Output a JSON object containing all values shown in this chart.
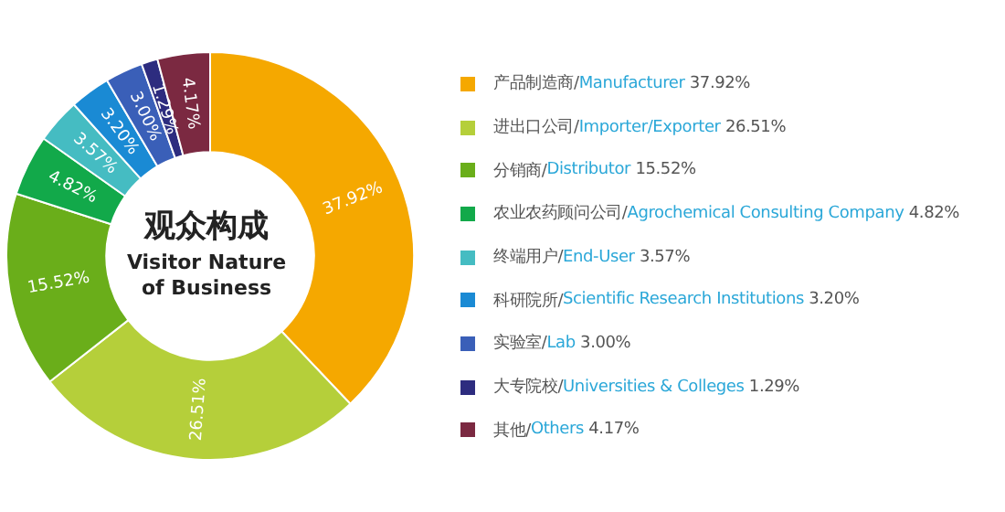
{
  "chart_data": {
    "type": "donut",
    "title": "观众构成",
    "subtitle": "Visitor Nature of Business",
    "categories": [
      "产品制造商/Manufacturer",
      "进出口公司/Importer/Exporter",
      "分销商/Distributor",
      "农业农药顾问公司/Agrochemical Consulting Company",
      "终端用户/End-User",
      "科研院所/Scientific Research Institutions",
      "实验室/Lab",
      "大专院校/Universities & Colleges",
      "其他/Others"
    ],
    "values": [
      37.92,
      26.51,
      15.52,
      4.82,
      3.57,
      3.2,
      3.0,
      1.29,
      4.17
    ],
    "value_labels": [
      "37.92%",
      "26.51%",
      "15.52%",
      "4.82%",
      "3.57%",
      "3.20%",
      "3.00%",
      "1.29%",
      "4.17%"
    ],
    "colors": [
      "#f5a800",
      "#b5cf3a",
      "#6aae1a",
      "#12a94a",
      "#45bcc2",
      "#1a8ad4",
      "#3a5fb8",
      "#2d2c7f",
      "#7b2941"
    ],
    "legend": "right"
  }
}
